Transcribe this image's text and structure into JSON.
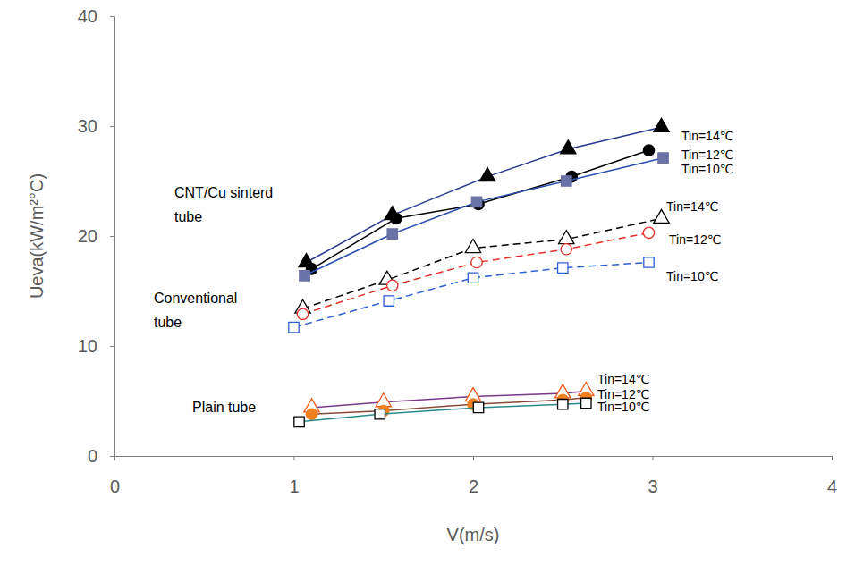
{
  "chart_data": {
    "type": "line",
    "x_label": "V(m/s)",
    "y_label": "Ueva(kW/m²°C)",
    "xlim": [
      0,
      4
    ],
    "xticks": [
      0,
      1,
      2,
      3,
      4
    ],
    "ylim": [
      0,
      40
    ],
    "yticks": [
      0,
      10,
      20,
      30,
      40
    ],
    "grid": false,
    "annotations": [
      "CNT/Cu sinterd",
      "tube",
      "Conventional",
      "tube",
      "Plain tube"
    ],
    "series": [
      {
        "name": "Tin=14℃",
        "color": "#000000",
        "marker": "filled-triangle",
        "line_style": "solid",
        "x": [
          1.07,
          1.55,
          2.08,
          2.53,
          3.05
        ],
        "values": [
          17.6,
          21.9,
          25.4,
          27.9,
          29.9
        ]
      },
      {
        "name": "Tin=12℃",
        "color": "#000000",
        "marker": "filled-circle",
        "line_style": "solid",
        "x": [
          1.1,
          1.57,
          2.03,
          2.55,
          2.98
        ],
        "values": [
          17.0,
          21.6,
          22.9,
          25.4,
          27.8
        ]
      },
      {
        "name": "Tin=10℃",
        "color": "#6b72a8",
        "marker": "filled-square",
        "line_style": "solid",
        "x": [
          1.06,
          1.55,
          2.02,
          2.52,
          3.06
        ],
        "values": [
          16.4,
          20.2,
          23.1,
          25.0,
          27.1
        ]
      },
      {
        "name": "Tin=14℃",
        "color": "#000000",
        "marker": "open-triangle",
        "line_style": "dashed",
        "x": [
          1.05,
          1.52,
          2.0,
          2.52,
          3.05
        ],
        "values": [
          13.4,
          16.0,
          18.9,
          19.7,
          21.6
        ]
      },
      {
        "name": "Tin=12℃",
        "color": "#e8312a",
        "marker": "open-circle",
        "line_style": "dashed",
        "x": [
          1.05,
          1.55,
          2.02,
          2.52,
          2.98
        ],
        "values": [
          12.9,
          15.5,
          17.6,
          18.8,
          20.3
        ]
      },
      {
        "name": "Tin=10℃",
        "color": "#2f5fd8",
        "marker": "open-square",
        "line_style": "dashed",
        "x": [
          1.0,
          1.53,
          2.0,
          2.5,
          2.98
        ],
        "values": [
          11.7,
          14.1,
          16.2,
          17.1,
          17.6
        ]
      },
      {
        "name": "Tin=14℃",
        "color": "#f05a1a",
        "marker": "open-triangle",
        "line_style": "solid",
        "x": [
          1.1,
          1.5,
          2.0,
          2.5,
          2.63
        ],
        "values": [
          4.4,
          4.9,
          5.4,
          5.7,
          5.9
        ]
      },
      {
        "name": "Tin=12℃",
        "color": "#f08020",
        "marker": "filled-circle",
        "line_style": "solid",
        "x": [
          1.1,
          1.5,
          2.0,
          2.5,
          2.63
        ],
        "values": [
          3.8,
          4.1,
          4.7,
          5.1,
          5.3
        ]
      },
      {
        "name": "Tin=10℃",
        "color": "#000000",
        "marker": "open-square",
        "line_style": "solid",
        "x": [
          1.03,
          1.48,
          2.03,
          2.5,
          2.63
        ],
        "values": [
          3.1,
          3.8,
          4.4,
          4.7,
          4.8
        ]
      }
    ]
  }
}
